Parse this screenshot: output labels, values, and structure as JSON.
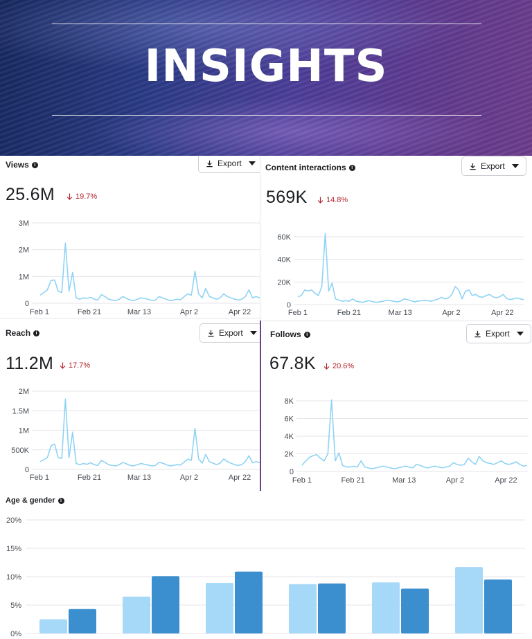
{
  "banner": {
    "title": "INSIGHTS"
  },
  "views": {
    "title": "Views",
    "export_label": "Export",
    "total": "25.6M",
    "delta": "19.7%",
    "chart_data": {
      "type": "line",
      "y_ticks": [
        "0",
        "1M",
        "2M",
        "3M"
      ],
      "ylim": [
        0,
        3000000
      ],
      "x_ticks": [
        "Feb 1",
        "Feb 21",
        "Mar 13",
        "Apr 2",
        "Apr 22"
      ],
      "values": [
        300000,
        400000,
        500000,
        850000,
        870000,
        450000,
        400000,
        2250000,
        450000,
        1150000,
        200000,
        150000,
        200000,
        180000,
        220000,
        150000,
        120000,
        320000,
        250000,
        150000,
        120000,
        100000,
        150000,
        250000,
        180000,
        120000,
        100000,
        150000,
        200000,
        180000,
        150000,
        100000,
        120000,
        250000,
        200000,
        150000,
        100000,
        120000,
        150000,
        130000,
        250000,
        350000,
        300000,
        1200000,
        350000,
        200000,
        550000,
        250000,
        200000,
        150000,
        200000,
        350000,
        250000,
        200000,
        150000,
        120000,
        150000,
        250000,
        500000,
        200000,
        250000,
        200000
      ]
    }
  },
  "content": {
    "title": "Content interactions",
    "export_label": "Export",
    "total": "569K",
    "delta": "14.8%",
    "chart_data": {
      "type": "line",
      "y_ticks": [
        "0",
        "20K",
        "40K",
        "60K"
      ],
      "ylim": [
        0,
        70000
      ],
      "x_ticks": [
        "Feb 1",
        "Feb 21",
        "Mar 13",
        "Apr 2",
        "Apr 22"
      ],
      "values": [
        7000,
        8000,
        13000,
        12000,
        13000,
        10000,
        8000,
        16000,
        63000,
        12000,
        19000,
        5000,
        4000,
        3000,
        3500,
        3000,
        5000,
        3000,
        2500,
        2000,
        3000,
        3500,
        2500,
        2000,
        2500,
        3000,
        4000,
        3500,
        3000,
        2500,
        3000,
        5000,
        4500,
        3500,
        2500,
        3000,
        3500,
        4000,
        3500,
        3000,
        4000,
        5000,
        6500,
        5000,
        6000,
        9000,
        16000,
        13000,
        5000,
        12000,
        13000,
        8000,
        9000,
        7000,
        6500,
        8000,
        9000,
        7000,
        6000,
        7000,
        9000,
        5500,
        4500,
        5000,
        6000,
        5000,
        4500
      ]
    }
  },
  "reach": {
    "title": "Reach",
    "export_label": "Export",
    "total": "11.2M",
    "delta": "17.7%",
    "chart_data": {
      "type": "line",
      "y_ticks": [
        "0",
        "500K",
        "1M",
        "1.5M",
        "2M"
      ],
      "ylim": [
        0,
        2000000
      ],
      "x_ticks": [
        "Feb 1",
        "Feb 21",
        "Mar 13",
        "Apr 2",
        "Apr 22"
      ],
      "values": [
        200000,
        250000,
        300000,
        600000,
        650000,
        300000,
        280000,
        1800000,
        300000,
        950000,
        150000,
        120000,
        150000,
        130000,
        170000,
        120000,
        100000,
        230000,
        180000,
        120000,
        100000,
        90000,
        120000,
        180000,
        140000,
        100000,
        90000,
        120000,
        150000,
        130000,
        110000,
        90000,
        100000,
        180000,
        160000,
        120000,
        90000,
        100000,
        120000,
        110000,
        190000,
        260000,
        230000,
        1050000,
        270000,
        160000,
        380000,
        200000,
        160000,
        120000,
        160000,
        270000,
        200000,
        160000,
        120000,
        100000,
        120000,
        200000,
        350000,
        170000,
        200000,
        170000
      ]
    }
  },
  "follows": {
    "title": "Follows",
    "export_label": "Export",
    "total": "67.8K",
    "delta": "20.6%",
    "chart_data": {
      "type": "line",
      "y_ticks": [
        "0",
        "2K",
        "4K",
        "6K",
        "8K"
      ],
      "ylim": [
        0,
        8500
      ],
      "x_ticks": [
        "Feb 1",
        "Feb 21",
        "Mar 13",
        "Apr 2",
        "Apr 22"
      ],
      "values": [
        700,
        1200,
        1600,
        1800,
        1900,
        1500,
        1200,
        2000,
        8100,
        1200,
        2100,
        700,
        500,
        500,
        600,
        500,
        1200,
        500,
        400,
        300,
        400,
        500,
        600,
        500,
        400,
        300,
        400,
        500,
        600,
        500,
        400,
        800,
        700,
        500,
        400,
        500,
        600,
        500,
        400,
        500,
        600,
        1000,
        800,
        700,
        800,
        1500,
        1100,
        800,
        1700,
        1200,
        1000,
        900,
        800,
        1000,
        1200,
        900,
        800,
        900,
        1100,
        800,
        600,
        700
      ]
    }
  },
  "agegender": {
    "title": "Age & gender",
    "chart_data": {
      "type": "bar",
      "y_ticks": [
        "0%",
        "5%",
        "10%",
        "15%",
        "20%"
      ],
      "ylim": [
        0,
        20
      ],
      "groups": 6,
      "series": [
        {
          "values": [
            2.5,
            6.5,
            8.9,
            8.7,
            9.0,
            11.7
          ],
          "color": "#a6d8f7"
        },
        {
          "values": [
            4.3,
            10.1,
            10.9,
            8.8,
            7.9,
            9.5
          ],
          "color": "#3b8fcf"
        }
      ]
    }
  },
  "colors": {
    "line": "#8fd3f4",
    "delta": "#b3262d",
    "grid": "#e4e6eb"
  }
}
